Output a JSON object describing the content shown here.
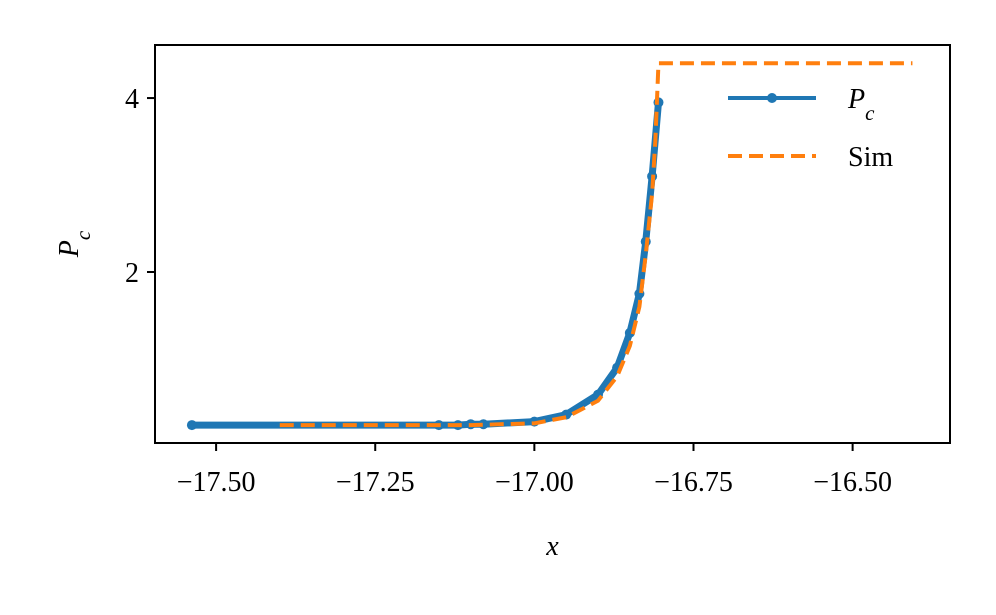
{
  "chart_data": {
    "type": "line",
    "x_label": "x",
    "y_label": "P_c",
    "xlim": [
      -17.596,
      -16.347
    ],
    "ylim": [
      0.034,
      4.61
    ],
    "xticks": [
      {
        "value": -17.5,
        "label": "−17.50"
      },
      {
        "value": -17.25,
        "label": "−17.25"
      },
      {
        "value": -17.0,
        "label": "−17.00"
      },
      {
        "value": -16.75,
        "label": "−16.75"
      },
      {
        "value": -16.5,
        "label": "−16.50"
      }
    ],
    "yticks": [
      2,
      4
    ],
    "legend": "upper right",
    "series": [
      {
        "name": "P_c",
        "color": "#1f77b4",
        "style": "solid",
        "markers": true,
        "x": [
          -17.538,
          -17.15,
          -17.12,
          -17.1,
          -17.08,
          -17.0,
          -16.95,
          -16.9,
          -16.87,
          -16.85,
          -16.835,
          -16.825,
          -16.815,
          -16.805
        ],
        "values": [
          0.24,
          0.24,
          0.24,
          0.25,
          0.25,
          0.28,
          0.36,
          0.59,
          0.9,
          1.3,
          1.75,
          2.35,
          3.1,
          3.95
        ]
      },
      {
        "name": "Sim",
        "color": "#ff7f0e",
        "style": "dashed",
        "markers": false,
        "x": [
          -17.4,
          -17.1,
          -17.0,
          -16.95,
          -16.9,
          -16.87,
          -16.85,
          -16.835,
          -16.825,
          -16.815,
          -16.81,
          -16.805,
          -16.8,
          -16.406
        ],
        "values": [
          0.24,
          0.24,
          0.26,
          0.33,
          0.52,
          0.8,
          1.15,
          1.6,
          2.2,
          2.9,
          3.5,
          4.4,
          4.4,
          4.4
        ]
      }
    ]
  }
}
